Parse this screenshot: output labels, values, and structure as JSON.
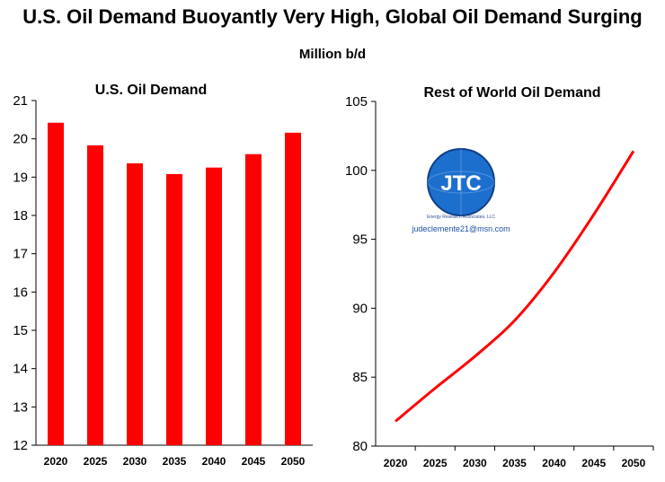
{
  "header": {
    "title": "U.S. Oil Demand Buoyantly Very High, Global Oil Demand Surging",
    "units": "Million b/d"
  },
  "logo": {
    "text": "JTC",
    "org": "Energy Research Associates, LLC",
    "email": "judeclemente21@msn.com"
  },
  "colors": {
    "bar": "#ff0000",
    "line": "#ff0000",
    "axis": "#000000"
  },
  "chart_data": [
    {
      "type": "bar",
      "title": "U.S. Oil Demand",
      "categories": [
        "2020",
        "2025",
        "2030",
        "2035",
        "2040",
        "2045",
        "2050"
      ],
      "values": [
        20.42,
        19.83,
        19.36,
        19.08,
        19.25,
        19.6,
        20.16
      ],
      "ylim": [
        12,
        21
      ],
      "yticks": [
        12,
        13,
        14,
        15,
        16,
        17,
        18,
        19,
        20,
        21
      ],
      "xlabel": "",
      "ylabel": "",
      "grid": false,
      "legend": "none"
    },
    {
      "type": "line",
      "title": "Rest of World Oil Demand",
      "categories": [
        "2020",
        "2025",
        "2030",
        "2035",
        "2040",
        "2045",
        "2050"
      ],
      "values": [
        81.8,
        84.2,
        86.5,
        89.1,
        92.6,
        96.8,
        101.4
      ],
      "ylim": [
        80,
        105
      ],
      "yticks": [
        80,
        85,
        90,
        95,
        100,
        105
      ],
      "xlabel": "",
      "ylabel": "",
      "grid": false,
      "legend": "none"
    }
  ]
}
